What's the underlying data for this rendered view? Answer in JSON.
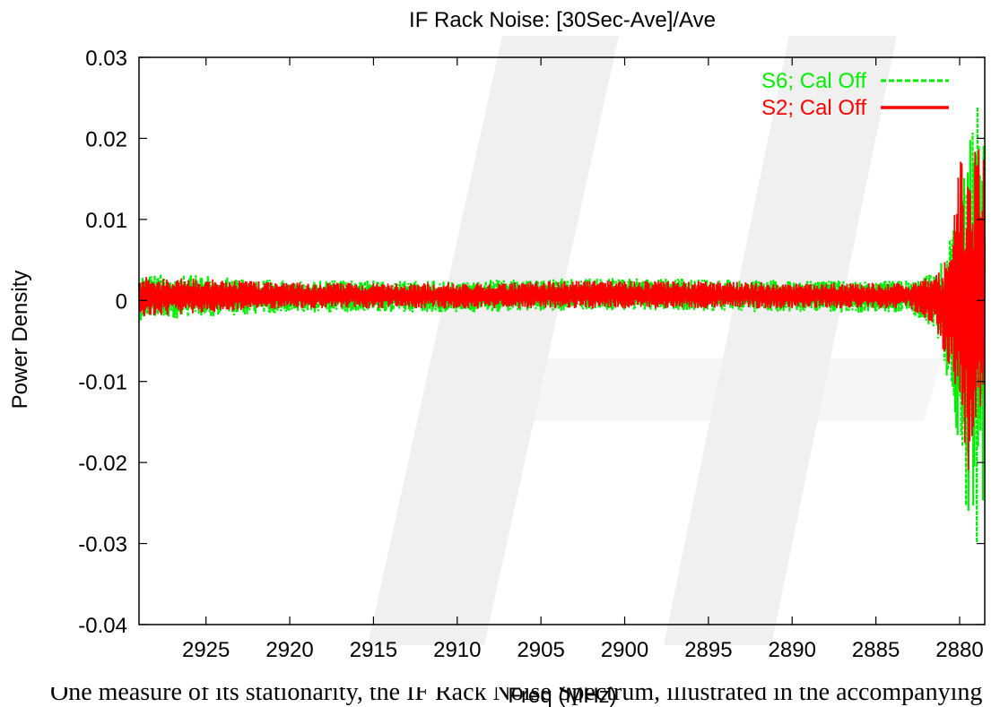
{
  "chart_data": {
    "type": "line",
    "title": "IF Rack Noise: [30Sec-Ave]/Ave",
    "xlabel": "Freq (MHz)",
    "ylabel": "Power Density",
    "x_reversed": true,
    "xlim": [
      2929.0,
      2878.5
    ],
    "ylim": [
      -0.04,
      0.03
    ],
    "x_ticks": [
      2925,
      2920,
      2915,
      2910,
      2905,
      2900,
      2895,
      2890,
      2885,
      2880
    ],
    "x_tick_labels": [
      "2925",
      "2920",
      "2915",
      "2910",
      "2905",
      "2900",
      "2895",
      "2890",
      "2885",
      "2880"
    ],
    "y_ticks": [
      -0.04,
      -0.03,
      -0.02,
      -0.01,
      0,
      0.01,
      0.02,
      0.03
    ],
    "y_tick_labels": [
      "-0.04",
      "-0.03",
      "-0.02",
      "-0.01",
      "0",
      "0.01",
      "0.02",
      "0.03"
    ],
    "legend_position": "top-right",
    "series": [
      {
        "name": "S6; Cal Off",
        "color": "#00ee00",
        "dash": "dashed",
        "envelope": {
          "x": [
            2929.0,
            2920,
            2910,
            2900,
            2890,
            2883,
            2881.5,
            2880.5,
            2880.0,
            2879.5,
            2879.0,
            2878.8
          ],
          "upper": [
            0.0035,
            0.0025,
            0.0025,
            0.0028,
            0.0025,
            0.0025,
            0.0035,
            0.008,
            0.014,
            0.023,
            0.03,
            0.027
          ],
          "lower": [
            -0.0025,
            -0.0015,
            -0.0015,
            -0.0012,
            -0.0015,
            -0.0015,
            -0.0035,
            -0.012,
            -0.02,
            -0.027,
            -0.031,
            -0.028
          ]
        }
      },
      {
        "name": "S2; Cal Off",
        "color": "#ff0000",
        "dash": "solid",
        "envelope": {
          "x": [
            2929.0,
            2920,
            2910,
            2900,
            2890,
            2883,
            2881.5,
            2880.5,
            2880.0,
            2879.5,
            2879.0,
            2878.8
          ],
          "upper": [
            0.003,
            0.0022,
            0.0022,
            0.0025,
            0.0022,
            0.0022,
            0.003,
            0.006,
            0.018,
            0.017,
            0.02,
            0.019
          ],
          "lower": [
            -0.002,
            -0.001,
            -0.001,
            -0.001,
            -0.001,
            -0.001,
            -0.003,
            -0.009,
            -0.017,
            -0.021,
            -0.02,
            -0.018
          ]
        }
      }
    ]
  },
  "caption_fragment": "One measure of its stationarity, the IF Rack Noise Spectrum, illustrated in the accompanying"
}
